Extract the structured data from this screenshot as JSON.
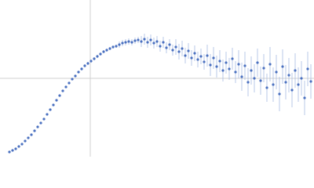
{
  "chart_data": {
    "type": "scatter",
    "x": [
      12,
      16,
      20,
      24,
      28,
      32,
      36,
      40,
      44,
      48,
      52,
      56,
      60,
      64,
      68,
      72,
      76,
      80,
      84,
      88,
      92,
      96,
      100,
      104,
      108,
      112,
      116,
      120,
      124,
      128,
      132,
      136,
      140,
      144,
      148,
      152,
      156,
      160,
      164,
      168,
      172,
      176,
      180,
      184,
      188,
      192,
      196,
      200,
      204,
      208,
      212,
      216,
      220,
      224,
      228,
      232,
      236,
      240,
      244,
      248,
      252,
      256,
      260,
      264,
      268,
      272,
      276,
      280,
      284,
      288,
      292,
      296,
      300,
      304,
      308,
      312,
      316,
      320,
      324,
      328,
      332,
      336,
      340,
      344,
      348,
      352,
      356,
      360,
      364,
      368,
      372,
      376,
      380,
      384,
      388,
      392,
      396
    ],
    "series": [
      {
        "color": "#4a70c0",
        "error_color": "#a9bbe2",
        "values": [
          6,
          8,
          10,
          13,
          16,
          20,
          24,
          28,
          33,
          38,
          43,
          48,
          54,
          60,
          66,
          72,
          78,
          84,
          89,
          94,
          99,
          103,
          108,
          112,
          116,
          119,
          122,
          125,
          128,
          131,
          134,
          136,
          138,
          140,
          141,
          143,
          145,
          146,
          147,
          146,
          148,
          149,
          147,
          150,
          146,
          149,
          145,
          147,
          141,
          146,
          139,
          143,
          136,
          140,
          134,
          138,
          129,
          135,
          126,
          132,
          124,
          128,
          121,
          129,
          117,
          126,
          115,
          122,
          110,
          120,
          112,
          125,
          108,
          118,
          102,
          116,
          95,
          110,
          100,
          120,
          97,
          113,
          88,
          118,
          92,
          108,
          80,
          115,
          95,
          104,
          85,
          110,
          92,
          100,
          75,
          112,
          96
        ],
        "errors": [
          1,
          1,
          1,
          1,
          1,
          1,
          1,
          1,
          1,
          1,
          1,
          1,
          1,
          1,
          1,
          1,
          1,
          1,
          1,
          1,
          1,
          1,
          1,
          2,
          2,
          2,
          2,
          2,
          2,
          2,
          2,
          2,
          2,
          2,
          2,
          4,
          4,
          4,
          4,
          4,
          4,
          4,
          7,
          7,
          7,
          7,
          7,
          7,
          7,
          7,
          7,
          7,
          7,
          10,
          10,
          10,
          10,
          10,
          10,
          10,
          10,
          10,
          10,
          14,
          14,
          14,
          14,
          14,
          14,
          14,
          14,
          14,
          14,
          18,
          18,
          18,
          18,
          18,
          18,
          18,
          18,
          18,
          18,
          22,
          22,
          22,
          22,
          22,
          22,
          22,
          22,
          22,
          22,
          22,
          22,
          22,
          22
        ]
      }
    ],
    "xlim": [
      0,
      400
    ],
    "ylim": [
      0,
      200
    ],
    "xticks": [
      115
    ],
    "yticks": [
      100
    ],
    "grid": true
  }
}
